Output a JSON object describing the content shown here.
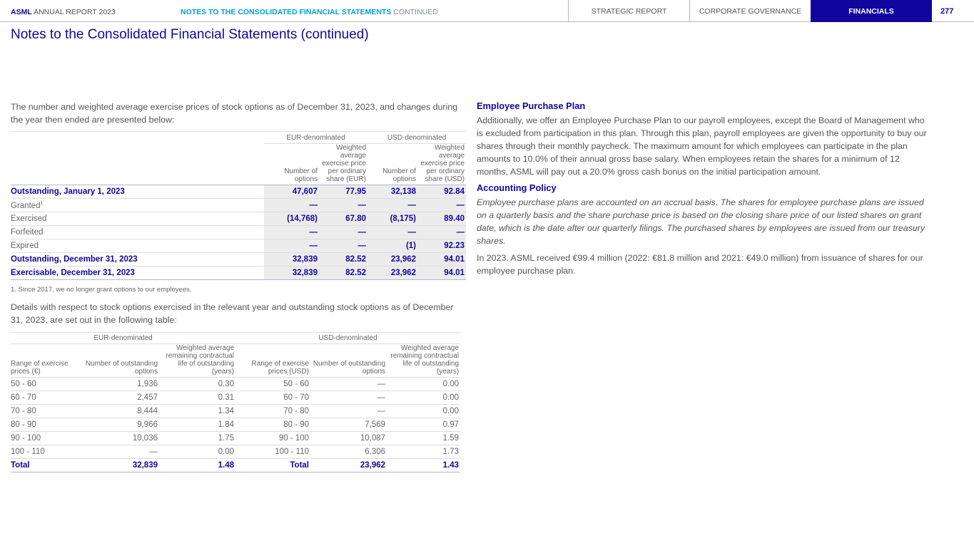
{
  "header": {
    "brand_bold": "ASML",
    "brand_rest": " ANNUAL REPORT 2023",
    "section_bold": "NOTES TO THE CONSOLIDATED FINANCIAL STATEMENTS",
    "section_rest": " CONTINUED",
    "nav": [
      "STRATEGIC REPORT",
      "CORPORATE GOVERNANCE",
      "FINANCIALS"
    ],
    "page": "277"
  },
  "title": "Notes to the Consolidated Financial Statements (continued)",
  "intro1": "The number and weighted average exercise prices of stock options as of December 31, 2023, and changes during the year then ended are presented below:",
  "table1": {
    "groups": [
      "EUR-denominated",
      "USD-denominated"
    ],
    "headers": [
      "Number of options",
      "Weighted average exercise price per ordinary share (EUR)",
      "Number of options",
      "Weighted average exercise price per ordinary share (USD)"
    ],
    "rows": [
      {
        "label": "Outstanding, January 1, 2023",
        "values": [
          "47,607",
          "77.95",
          "32,138",
          "92.84"
        ],
        "bold": true
      },
      {
        "label": "Granted",
        "sup": "1",
        "values": [
          "—",
          "—",
          "—",
          "—"
        ]
      },
      {
        "label": "Exercised",
        "values": [
          "(14,768)",
          "67.80",
          "(8,175)",
          "89.40"
        ]
      },
      {
        "label": "Forfeited",
        "values": [
          "—",
          "—",
          "—",
          "—"
        ]
      },
      {
        "label": "Expired",
        "values": [
          "—",
          "—",
          "(1)",
          "92.23"
        ]
      },
      {
        "label": "Outstanding, December 31, 2023",
        "values": [
          "32,839",
          "82.52",
          "23,962",
          "94.01"
        ],
        "bold": true
      },
      {
        "label": "Exercisable, December 31, 2023",
        "values": [
          "32,839",
          "82.52",
          "23,962",
          "94.01"
        ],
        "bold": true
      }
    ],
    "footnote": "1. Since 2017, we no longer grant options to our employees."
  },
  "intro2": "Details with respect to stock options exercised in the relevant year and outstanding stock options as of December 31, 2023, are set out in the following table:",
  "table2": {
    "groups": [
      "EUR-denominated",
      "USD-denominated"
    ],
    "headers": [
      "Range of exercise prices (€)",
      "Number of outstanding options",
      "Weighted average remaining contractual life of outstanding (years)",
      "Range of exercise prices (USD)",
      "Number of outstanding options",
      "Weighted average remaining contractual life of outstanding (years)"
    ],
    "rows": [
      [
        "50 - 60",
        "1,936",
        "0.30",
        "50 - 60",
        "—",
        "0.00"
      ],
      [
        "60 - 70",
        "2,457",
        "0.31",
        "60 - 70",
        "—",
        "0.00"
      ],
      [
        "70 - 80",
        "8,444",
        "1.34",
        "70 - 80",
        "—",
        "0.00"
      ],
      [
        "80 - 90",
        "9,966",
        "1.84",
        "80 - 90",
        "7,569",
        "0.97"
      ],
      [
        "90 - 100",
        "10,036",
        "1.75",
        "90 - 100",
        "10,087",
        "1.59"
      ],
      [
        "100 - 110",
        "—",
        "0.00",
        "100 - 110",
        "6,306",
        "1.73"
      ]
    ],
    "total": [
      "Total",
      "32,839",
      "1.48",
      "Total",
      "23,962",
      "1.43"
    ]
  },
  "right": {
    "h_epp": "Employee Purchase Plan",
    "p_epp": "Additionally, we offer an Employee Purchase Plan to our payroll employees, except the Board of Management who is excluded from participation in this plan. Through this plan, payroll employees are given the opportunity to buy our shares through their monthly paycheck. The maximum amount for which employees can participate in the plan amounts to 10.0% of their annual gross base salary. When employees retain the shares for a minimum of 12 months, ASML will pay out a 20.0% gross cash bonus on the initial participation amount.",
    "h_ap": "Accounting Policy",
    "p_ap": "Employee purchase plans are accounted on an accrual basis. The shares for employee purchase plans are issued on a quarterly basis and the share purchase price is based on the closing share price of our listed shares on grant date, which is the date after our quarterly filings. The purchased shares by employees are issued from our treasury shares.",
    "p_2023": "In 2023, ASML received €99.4 million (2022: €81.8 million and 2021: €49.0 million) from issuance of shares for our employee purchase plan."
  }
}
